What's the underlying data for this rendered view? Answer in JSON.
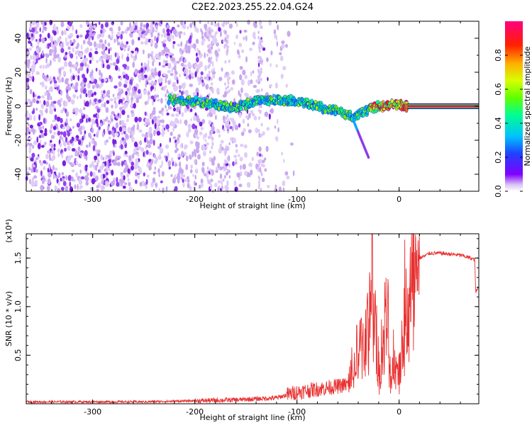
{
  "title": "C2E2.2023.255.22.04.G24",
  "chart_data": [
    {
      "type": "heatmap",
      "xlabel": "Height of straight line (km)",
      "ylabel": "Frequency (Hz)",
      "xlim": [
        -365,
        78
      ],
      "ylim": [
        -50,
        50
      ],
      "xticks": [
        -300,
        -200,
        -100,
        0
      ],
      "xtick_labels": [
        "-300",
        "-200",
        "-100",
        "0"
      ],
      "yticks": [
        -40,
        -20,
        0,
        20,
        40
      ],
      "ytick_labels": [
        "-40",
        "-20",
        "0",
        "20",
        "40"
      ],
      "colorbar": {
        "label": "Normalized spectral amplitude",
        "range": [
          0,
          1
        ],
        "ticks": [
          0.0,
          0.2,
          0.4,
          0.6,
          0.8
        ],
        "tick_labels": [
          "0.0",
          "0.2",
          "0.4",
          "0.6",
          "0.8"
        ],
        "colors": [
          "#ffffff",
          "#c8a0f0",
          "#8000ff",
          "#2020ff",
          "#00c0ff",
          "#00ff80",
          "#80ff00",
          "#ffff00",
          "#ff8000",
          "#ff0000",
          "#ff0080"
        ]
      },
      "noise_region_x": [
        -365,
        -130
      ],
      "signal_trace": [
        {
          "x": -225,
          "y": 4
        },
        {
          "x": -200,
          "y": 3
        },
        {
          "x": -180,
          "y": 1
        },
        {
          "x": -160,
          "y": -1
        },
        {
          "x": -140,
          "y": 3
        },
        {
          "x": -120,
          "y": 4
        },
        {
          "x": -100,
          "y": 3
        },
        {
          "x": -80,
          "y": 0
        },
        {
          "x": -60,
          "y": -3
        },
        {
          "x": -45,
          "y": -6
        },
        {
          "x": -35,
          "y": -3
        },
        {
          "x": -20,
          "y": 0
        },
        {
          "x": -5,
          "y": 1
        },
        {
          "x": 8,
          "y": 0
        }
      ],
      "carrier_line": {
        "x_start": 8,
        "x_end": 78,
        "y": 0,
        "value": 0.95
      },
      "branch": [
        {
          "x": -45,
          "y": -8
        },
        {
          "x": -40,
          "y": -18
        },
        {
          "x": -30,
          "y": -30
        }
      ]
    },
    {
      "type": "line",
      "xlabel": "Height of straight line (km)",
      "ylabel": "SNR (10 * v/v)",
      "ylabel_multiplier": "(x10⁴)",
      "xlim": [
        -365,
        78
      ],
      "ylim": [
        0,
        1.75
      ],
      "xticks": [
        -300,
        -200,
        -100,
        0
      ],
      "xtick_labels": [
        "-300",
        "-200",
        "-100",
        "0"
      ],
      "yticks": [
        0.5,
        1.0,
        1.5
      ],
      "ytick_labels": [
        "0.5",
        "1.0",
        "1.5"
      ],
      "color": "#e83030",
      "series": [
        {
          "name": "SNR",
          "x": [
            -365,
            -300,
            -250,
            -200,
            -160,
            -120,
            -100,
            -80,
            -60,
            -50,
            -40,
            -30,
            -26,
            -20,
            -12,
            -8,
            -5,
            0,
            5,
            10,
            15,
            20,
            25,
            30,
            40,
            60,
            70,
            74,
            75,
            78
          ],
          "y": [
            0.02,
            0.02,
            0.02,
            0.03,
            0.04,
            0.06,
            0.12,
            0.15,
            0.18,
            0.2,
            0.6,
            0.9,
            1.75,
            0.3,
            1.0,
            0.25,
            0.5,
            0.4,
            1.0,
            1.2,
            1.4,
            1.5,
            1.52,
            1.55,
            1.55,
            1.53,
            1.5,
            1.48,
            1.15,
            1.2
          ]
        }
      ]
    }
  ]
}
